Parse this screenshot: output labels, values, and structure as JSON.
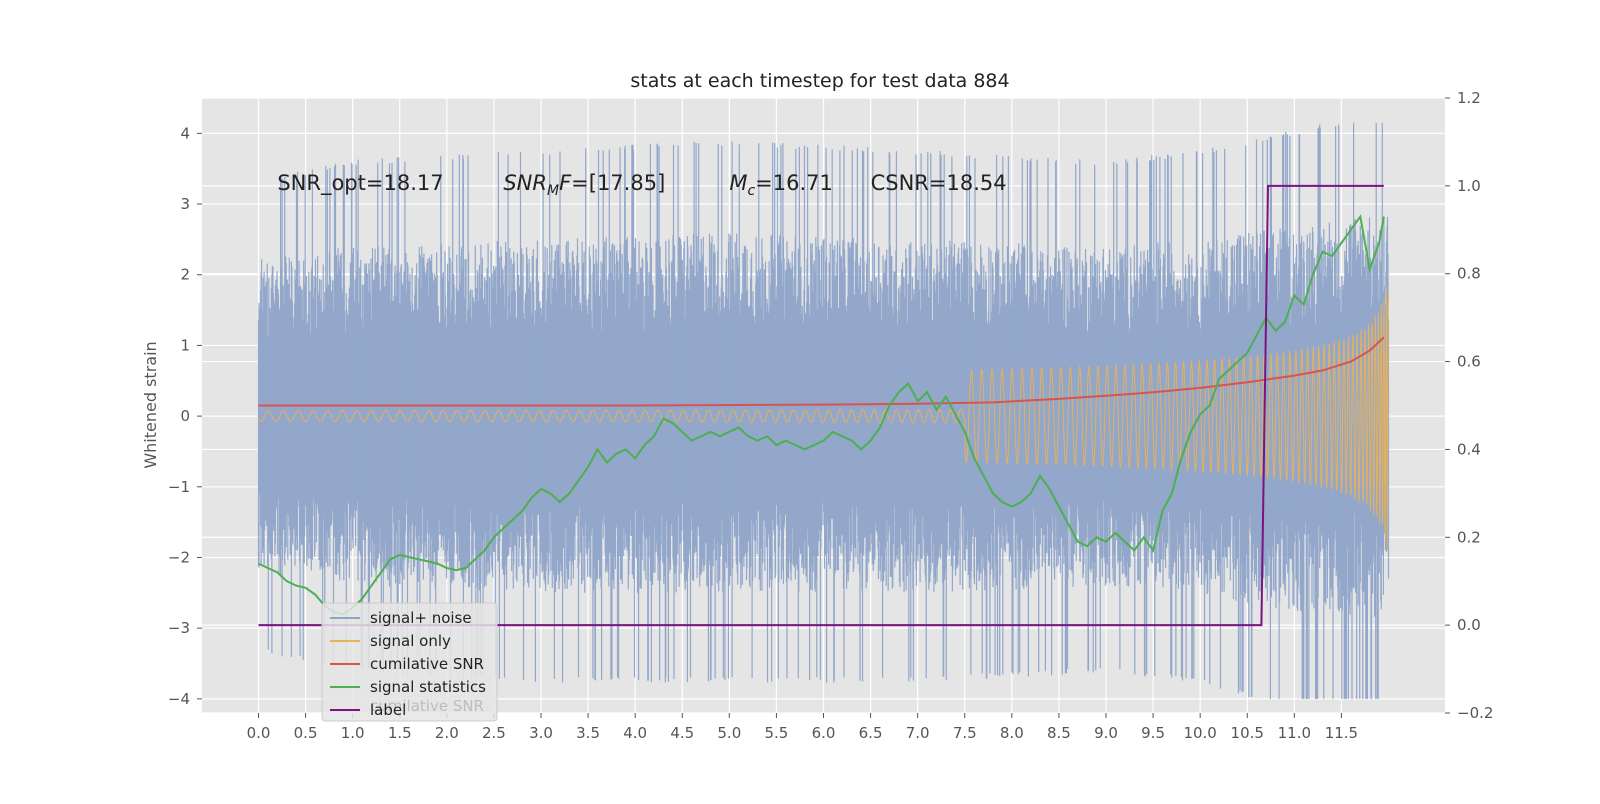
{
  "chart_data": {
    "type": "line",
    "title": "stats at each timestep for test data 884",
    "xlabel": "",
    "ylabel": "Whitened strain",
    "y2label": "",
    "xlim": [
      -0.6,
      12.6
    ],
    "ylim": [
      -4.2,
      4.5
    ],
    "y2lim": [
      -0.2,
      1.2
    ],
    "xticks": [
      0.0,
      0.5,
      1.0,
      1.5,
      2.0,
      2.5,
      3.0,
      3.5,
      4.0,
      4.5,
      5.0,
      5.5,
      6.0,
      6.5,
      7.0,
      7.5,
      8.0,
      8.5,
      9.0,
      9.5,
      10.0,
      10.5,
      11.0,
      11.5
    ],
    "xtick_labels": [
      "0.0",
      "0.5",
      "1.0",
      "1.5",
      "2.0",
      "2.5",
      "3.0",
      "3.5",
      "4.0",
      "4.5",
      "5.0",
      "5.5",
      "6.0",
      "6.5",
      "7.0",
      "7.5",
      "8.0",
      "8.5",
      "9.0",
      "9.5",
      "10.0",
      "10.5",
      "11.0",
      "11.5"
    ],
    "yticks": [
      -4,
      -3,
      -2,
      -1,
      0,
      1,
      2,
      3,
      4
    ],
    "ytick_labels": [
      "−4",
      "−3",
      "−2",
      "−1",
      "0",
      "1",
      "2",
      "3",
      "4"
    ],
    "y2ticks": [
      -0.2,
      0.0,
      0.2,
      0.4,
      0.6,
      0.8,
      1.0,
      1.2
    ],
    "y2tick_labels": [
      "−0.2",
      "0.0",
      "0.2",
      "0.4",
      "0.6",
      "0.8",
      "1.0",
      "1.2"
    ],
    "grid": true,
    "legend_position": "lower-left",
    "annotations": [
      {
        "text": "SNR_opt=18.17",
        "x": 0.2,
        "y": 3.3
      },
      {
        "text": "SNR_MF=[17.85]",
        "x": 2.6,
        "y": 3.3
      },
      {
        "text": "M_c=16.71",
        "x": 5.0,
        "y": 3.3
      },
      {
        "text": "CSNR=18.54",
        "x": 6.5,
        "y": 3.3
      }
    ],
    "series": [
      {
        "name": "signal+ noise",
        "axis": "left",
        "color": "#8da3c8",
        "kind": "noise-band",
        "x_range": [
          0.0,
          12.0
        ],
        "envelope_upper": [
          [
            0,
            2.3
          ],
          [
            1,
            2.5
          ],
          [
            3,
            2.6
          ],
          [
            5,
            2.7
          ],
          [
            7,
            2.6
          ],
          [
            9,
            2.5
          ],
          [
            10,
            2.6
          ],
          [
            11,
            2.8
          ],
          [
            12,
            3.0
          ]
        ],
        "envelope_lower": [
          [
            0,
            -2.3
          ],
          [
            1,
            -2.5
          ],
          [
            3,
            -2.6
          ],
          [
            5,
            -2.6
          ],
          [
            7,
            -2.6
          ],
          [
            9,
            -2.5
          ],
          [
            10,
            -2.6
          ],
          [
            11,
            -2.9
          ],
          [
            12,
            -3.0
          ]
        ]
      },
      {
        "name": "signal only",
        "axis": "left",
        "color": "#e8b15a",
        "kind": "chirp",
        "x_range": [
          0.0,
          12.0
        ],
        "amplitude_end": 2.0
      },
      {
        "name": "cumilative SNR",
        "axis": "right",
        "color": "#d9534f",
        "x": [
          0.0,
          2.0,
          4.0,
          6.0,
          7.0,
          7.8,
          8.5,
          9.0,
          9.5,
          10.0,
          10.5,
          11.0,
          11.3,
          11.6,
          11.8,
          11.95
        ],
        "y": [
          0.5,
          0.5,
          0.5,
          0.502,
          0.504,
          0.507,
          0.515,
          0.522,
          0.53,
          0.54,
          0.553,
          0.568,
          0.58,
          0.6,
          0.625,
          0.655
        ]
      },
      {
        "name": "signal statistics",
        "axis": "right",
        "color": "#4caf50",
        "x": [
          0.0,
          0.1,
          0.2,
          0.3,
          0.4,
          0.5,
          0.6,
          0.7,
          0.8,
          0.9,
          1.0,
          1.1,
          1.2,
          1.3,
          1.4,
          1.5,
          1.6,
          1.7,
          1.8,
          1.9,
          2.0,
          2.1,
          2.2,
          2.3,
          2.4,
          2.5,
          2.6,
          2.7,
          2.8,
          2.9,
          3.0,
          3.1,
          3.2,
          3.3,
          3.4,
          3.5,
          3.6,
          3.7,
          3.8,
          3.9,
          4.0,
          4.1,
          4.2,
          4.3,
          4.4,
          4.5,
          4.6,
          4.7,
          4.8,
          4.9,
          5.0,
          5.1,
          5.2,
          5.3,
          5.4,
          5.5,
          5.6,
          5.7,
          5.8,
          5.9,
          6.0,
          6.1,
          6.2,
          6.3,
          6.4,
          6.5,
          6.6,
          6.7,
          6.8,
          6.9,
          7.0,
          7.1,
          7.2,
          7.3,
          7.4,
          7.5,
          7.6,
          7.7,
          7.8,
          7.9,
          8.0,
          8.1,
          8.2,
          8.3,
          8.4,
          8.5,
          8.6,
          8.7,
          8.8,
          8.9,
          9.0,
          9.1,
          9.2,
          9.3,
          9.4,
          9.5,
          9.6,
          9.7,
          9.8,
          9.9,
          10.0,
          10.1,
          10.2,
          10.3,
          10.4,
          10.5,
          10.6,
          10.7,
          10.8,
          10.9,
          11.0,
          11.1,
          11.2,
          11.3,
          11.4,
          11.5,
          11.6,
          11.7,
          11.8,
          11.9,
          11.95
        ],
        "y": [
          0.14,
          0.13,
          0.12,
          0.1,
          0.09,
          0.085,
          0.07,
          0.045,
          0.03,
          0.025,
          0.04,
          0.06,
          0.09,
          0.12,
          0.15,
          0.16,
          0.155,
          0.15,
          0.145,
          0.14,
          0.13,
          0.125,
          0.13,
          0.15,
          0.17,
          0.2,
          0.22,
          0.24,
          0.26,
          0.29,
          0.31,
          0.3,
          0.28,
          0.3,
          0.33,
          0.36,
          0.4,
          0.37,
          0.39,
          0.4,
          0.38,
          0.41,
          0.43,
          0.47,
          0.46,
          0.44,
          0.42,
          0.43,
          0.44,
          0.43,
          0.44,
          0.45,
          0.43,
          0.42,
          0.43,
          0.41,
          0.42,
          0.41,
          0.4,
          0.41,
          0.42,
          0.44,
          0.43,
          0.42,
          0.4,
          0.42,
          0.45,
          0.5,
          0.53,
          0.55,
          0.51,
          0.53,
          0.49,
          0.52,
          0.48,
          0.44,
          0.38,
          0.34,
          0.3,
          0.28,
          0.27,
          0.28,
          0.3,
          0.34,
          0.31,
          0.27,
          0.23,
          0.19,
          0.18,
          0.2,
          0.19,
          0.21,
          0.19,
          0.17,
          0.2,
          0.17,
          0.26,
          0.3,
          0.38,
          0.44,
          0.48,
          0.5,
          0.56,
          0.58,
          0.6,
          0.62,
          0.66,
          0.7,
          0.67,
          0.69,
          0.75,
          0.73,
          0.8,
          0.85,
          0.84,
          0.87,
          0.9,
          0.93,
          0.81,
          0.87,
          0.93
        ]
      },
      {
        "name": "label",
        "axis": "right",
        "color": "#7b1380",
        "x": [
          0.0,
          10.65,
          10.72,
          11.95
        ],
        "y": [
          0.0,
          0.0,
          1.0,
          1.0
        ]
      }
    ],
    "legend_ghost_text": "cumilative SNR"
  }
}
